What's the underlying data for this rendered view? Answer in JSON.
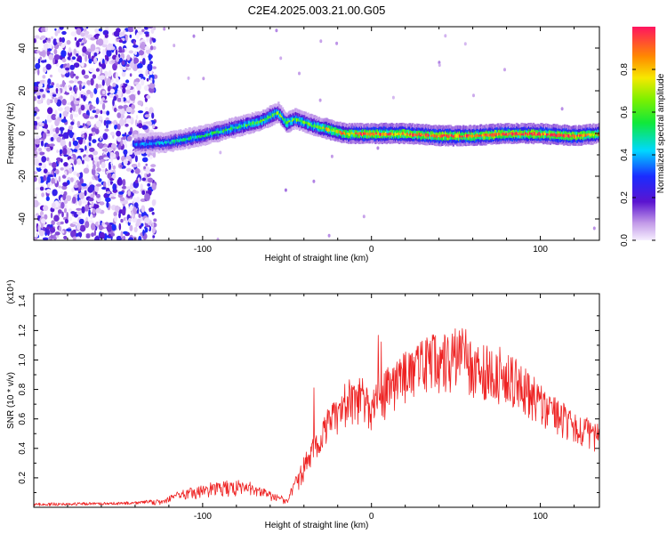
{
  "title": "C2E4.2025.003.21.00.G05",
  "chart_data": [
    {
      "type": "heatmap",
      "xlabel": "Height of straight line (km)",
      "ylabel": "Frequency (Hz)",
      "xlim": [
        -200,
        135
      ],
      "ylim": [
        -50,
        50
      ],
      "xticks": [
        -100,
        0,
        100
      ],
      "yticks": [
        -40,
        -20,
        0,
        20,
        40
      ],
      "colorbar": {
        "label": "Normalized spectral amplitude",
        "ticks": [
          "0.0",
          "0.2",
          "0.4",
          "0.6",
          "0.8"
        ],
        "range": [
          0,
          1
        ]
      },
      "noise_region_x": [
        -200,
        -128
      ],
      "ridge": {
        "x": [
          -140,
          -120,
          -100,
          -80,
          -65,
          -55,
          -50,
          -45,
          -35,
          -25,
          -15,
          0,
          20,
          40,
          60,
          80,
          100,
          120,
          135
        ],
        "y": [
          -5,
          -4,
          -1,
          3,
          6,
          10,
          5,
          7,
          4,
          2,
          0,
          0,
          0,
          -1,
          -1,
          0,
          0,
          -1,
          0
        ],
        "amplitude": [
          0.35,
          0.45,
          0.5,
          0.55,
          0.6,
          0.6,
          0.65,
          0.6,
          0.6,
          0.75,
          0.85,
          0.9,
          0.9,
          0.95,
          0.95,
          0.95,
          0.95,
          0.95,
          0.8
        ]
      }
    },
    {
      "type": "line",
      "xlabel": "Height of straight line (km)",
      "ylabel": "SNR (10 * v/v)",
      "y_multiplier": "(x10⁴)",
      "xlim": [
        -200,
        135
      ],
      "ylim": [
        0,
        1.45
      ],
      "xticks": [
        -100,
        0,
        100
      ],
      "yticks": [
        0.2,
        0.4,
        0.6,
        0.8,
        1.0,
        1.2,
        1.4
      ],
      "color": "#ee2222",
      "envelope": {
        "x": [
          -200,
          -140,
          -125,
          -110,
          -95,
          -80,
          -70,
          -60,
          -50,
          -40,
          -30,
          -25,
          -20,
          -10,
          0,
          10,
          20,
          30,
          40,
          50,
          55,
          60,
          70,
          80,
          90,
          100,
          110,
          120,
          135
        ],
        "y": [
          0.02,
          0.03,
          0.05,
          0.12,
          0.16,
          0.18,
          0.16,
          0.1,
          0.06,
          0.35,
          0.55,
          0.7,
          0.72,
          0.85,
          0.8,
          0.95,
          1.05,
          1.15,
          1.18,
          1.22,
          1.24,
          1.1,
          1.1,
          1.08,
          0.95,
          0.85,
          0.75,
          0.65,
          0.55
        ]
      }
    }
  ]
}
